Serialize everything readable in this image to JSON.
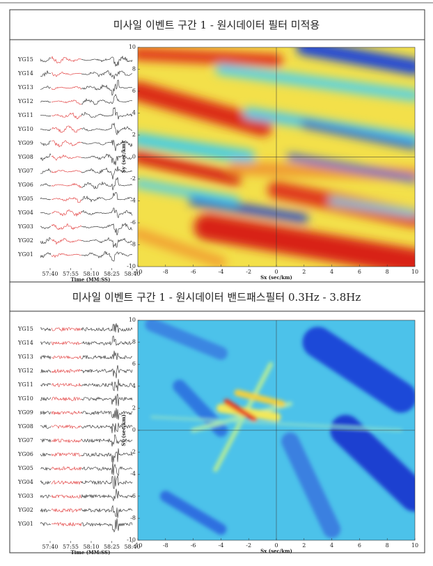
{
  "panels": [
    {
      "title": "미사일 이벤트 구간 1 - 원시데이터 필터 미적용",
      "stations": [
        "YG15",
        "YG14",
        "YG13",
        "YG12",
        "YG11",
        "YG10",
        "YG09",
        "YG08",
        "YG07",
        "YG06",
        "YG05",
        "YG04",
        "YG03",
        "YG02",
        "YG01"
      ],
      "time_ticks": [
        "57:40",
        "57:55",
        "58:10",
        "58:25",
        "58:40"
      ],
      "time_label": "Time (MM:SS)",
      "x_label": "Sx (sec/km)",
      "y_label": "Sy (sec/km)",
      "x_ticks": [
        -10,
        -8,
        -6,
        -4,
        -2,
        0,
        2,
        4,
        6,
        8,
        10
      ],
      "y_ticks": [
        -10,
        -8,
        -6,
        -4,
        -2,
        0,
        2,
        4,
        6,
        8,
        10
      ]
    },
    {
      "title": "미사일 이벤트 구간 1 - 원시데이터 밴드패스필터 0.3Hz - 3.8Hz",
      "stations": [
        "YG15",
        "YG14",
        "YG13",
        "YG12",
        "YG11",
        "YG10",
        "YG09",
        "YG08",
        "YG07",
        "YG06",
        "YG05",
        "YG04",
        "YG03",
        "YG02",
        "YG01"
      ],
      "time_ticks": [
        "57:40",
        "57:55",
        "58:10",
        "58:25",
        "58:40"
      ],
      "time_label": "Time (MM:SS)",
      "x_label": "Sx (sec/km)",
      "y_label": "Sy (sec/km)",
      "x_ticks": [
        -10,
        -8,
        -6,
        -4,
        -2,
        0,
        2,
        4,
        6,
        8,
        10
      ],
      "y_ticks": [
        -10,
        -8,
        -6,
        -4,
        -2,
        0,
        2,
        4,
        6,
        8,
        10
      ]
    }
  ]
}
